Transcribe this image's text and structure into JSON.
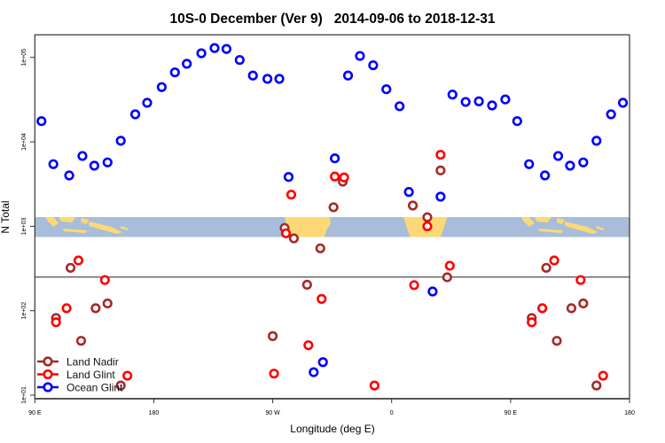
{
  "chart_data": {
    "type": "scatter",
    "title": "10S-0 December (Ver 9)   2014-09-06 to 2018-12-31",
    "xlabel": "Longitude (deg E)",
    "ylabel": "N Total",
    "y_scale": "log",
    "ylim": [
      9,
      190000
    ],
    "xlim_deg_east_continuous": [
      90,
      540
    ],
    "x_tick_labels": [
      "90 E",
      "180",
      "90 W",
      "0",
      "90 E",
      "180"
    ],
    "y_tick_labels": [
      "1e+01",
      "1e+02",
      "1e+03",
      "1e+04",
      "1e+05"
    ],
    "y_ticks": [
      10,
      100,
      1000,
      10000,
      100000
    ],
    "x_axis_repeats_90E_to_180": true,
    "reference_line_y": 250,
    "grid": false,
    "legend_placement": "bottom-left",
    "colors": {
      "Land Nadir": "#a52a2a",
      "Land Glint": "#ff0000",
      "Ocean Glint": "#0000ff",
      "map_ocean": "#a7bdd9",
      "map_land": "#fdd876"
    },
    "series": [
      {
        "name": "Land Nadir",
        "points": [
          [
            117,
            322
          ],
          [
            106,
            82
          ],
          [
            136,
            107
          ],
          [
            145,
            122
          ],
          [
            125,
            44
          ],
          [
            155,
            13
          ],
          [
            -81,
            955
          ],
          [
            -74,
            719
          ],
          [
            -54,
            548
          ],
          [
            -64,
            203
          ],
          [
            -90,
            50
          ],
          [
            -44,
            1680
          ],
          [
            -37,
            3380
          ],
          [
            37,
            4590
          ],
          [
            16,
            1760
          ],
          [
            27,
            1280
          ],
          [
            42,
            249
          ]
        ]
      },
      {
        "name": "Land Glint",
        "points": [
          [
            123,
            394
          ],
          [
            143,
            231
          ],
          [
            114,
            107
          ],
          [
            106,
            73
          ],
          [
            160,
            17
          ],
          [
            -80,
            826
          ],
          [
            -53,
            138
          ],
          [
            -63,
            39
          ],
          [
            -89,
            18
          ],
          [
            -13,
            13
          ],
          [
            17,
            201
          ],
          [
            27,
            1000
          ],
          [
            44,
            341
          ],
          [
            -76,
            2370
          ],
          [
            -43,
            3880
          ],
          [
            -36,
            3790
          ],
          [
            37,
            7030
          ]
        ]
      },
      {
        "name": "Ocean Glint",
        "points": [
          [
            95,
            17600
          ],
          [
            104,
            5440
          ],
          [
            116,
            4000
          ],
          [
            126,
            6800
          ],
          [
            135,
            5220
          ],
          [
            145,
            5710
          ],
          [
            155,
            10300
          ],
          [
            166,
            21200
          ],
          [
            175,
            29000
          ],
          [
            -174,
            44500
          ],
          [
            -164,
            66500
          ],
          [
            -155,
            84000
          ],
          [
            -144,
            112000
          ],
          [
            -134,
            129000
          ],
          [
            -125,
            126000
          ],
          [
            -115,
            93300
          ],
          [
            -105,
            61000
          ],
          [
            -94,
            55700
          ],
          [
            -85,
            55700
          ],
          [
            -78,
            3840
          ],
          [
            -43,
            6380
          ],
          [
            -33,
            61000
          ],
          [
            -24,
            104000
          ],
          [
            -14,
            80700
          ],
          [
            -4,
            42000
          ],
          [
            6,
            26400
          ],
          [
            13,
            2550
          ],
          [
            37,
            2240
          ],
          [
            46,
            36300
          ],
          [
            56,
            29700
          ],
          [
            66,
            30200
          ],
          [
            76,
            27000
          ],
          [
            86,
            31800
          ],
          [
            -59,
            18.7
          ],
          [
            -52,
            24.6
          ],
          [
            31,
            169
          ]
        ]
      }
    ]
  }
}
